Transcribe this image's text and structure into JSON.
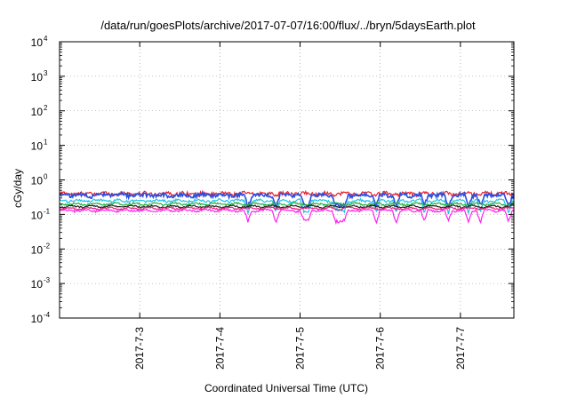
{
  "chart_data": {
    "type": "line",
    "title": "/data/run/goesPlots/archive/2017-07-07/16:00/flux/../bryn/5daysEarth.plot",
    "xlabel": "Coordinated Universal Time (UTC)",
    "ylabel": "cGy/day",
    "yscale": "log",
    "ylim": [
      0.0001,
      10000
    ],
    "y_ticks": [
      {
        "mant": "10",
        "exp": "-4"
      },
      {
        "mant": "10",
        "exp": "-3"
      },
      {
        "mant": "10",
        "exp": "-2"
      },
      {
        "mant": "10",
        "exp": "-1"
      },
      {
        "mant": "10",
        "exp": "0"
      },
      {
        "mant": "10",
        "exp": "1"
      },
      {
        "mant": "10",
        "exp": "2"
      },
      {
        "mant": "10",
        "exp": "3"
      },
      {
        "mant": "10",
        "exp": "4"
      }
    ],
    "xlim": [
      "2017-07-02",
      "2017-07-07 16:00"
    ],
    "x_ticks": [
      "2017-7-3",
      "2017-7-4",
      "2017-7-5",
      "2017-7-6",
      "2017-7-7"
    ],
    "grid": true,
    "series": [
      {
        "color": "#e8202a",
        "level": 0.4,
        "variation": 0.12,
        "dips": false
      },
      {
        "color": "#2a4fe0",
        "level": 0.36,
        "variation": 0.13,
        "dips": true
      },
      {
        "color": "#20c0e8",
        "level": 0.25,
        "variation": 0.08,
        "dips": true
      },
      {
        "color": "#20b040",
        "level": 0.2,
        "variation": 0.06,
        "dips": false
      },
      {
        "color": "#202020",
        "level": 0.17,
        "variation": 0.05,
        "dips": false
      },
      {
        "color": "#e8207a",
        "level": 0.15,
        "variation": 0.05,
        "dips": false
      },
      {
        "color": "#ff20f0",
        "level": 0.13,
        "variation": 0.06,
        "dips": true
      }
    ],
    "dip_days": [
      2.35,
      2.7,
      3.05,
      3.1,
      3.45,
      3.5,
      3.55,
      3.95,
      4.2,
      4.55,
      4.85,
      5.1,
      5.25,
      5.6,
      5.85,
      5.95,
      6.25,
      6.55,
      6.9,
      7.0,
      7.35,
      7.6
    ]
  }
}
